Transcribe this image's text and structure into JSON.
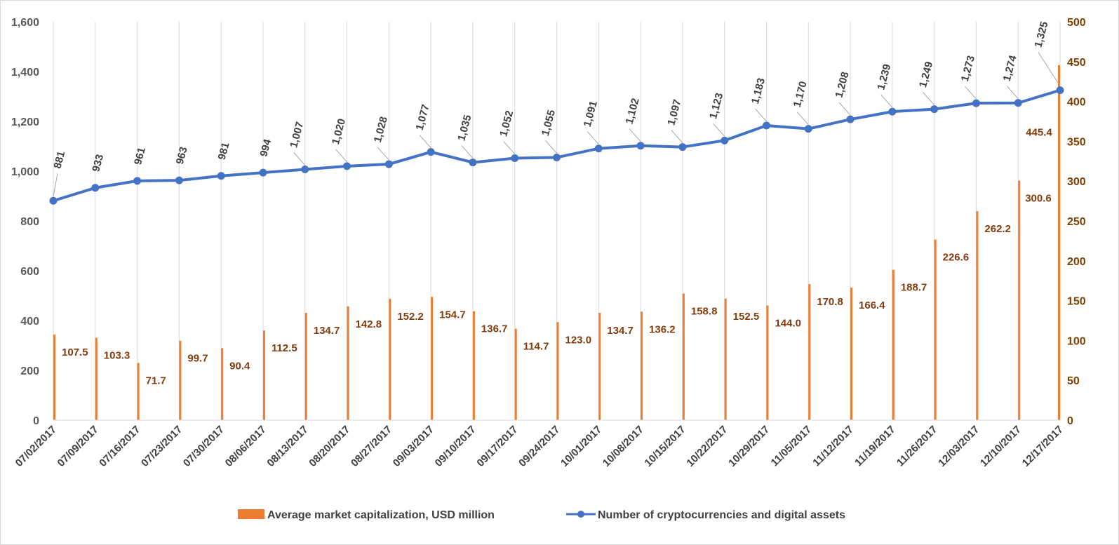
{
  "chart_data": {
    "type": "bar",
    "categories": [
      "07/02/2017",
      "07/09/2017",
      "07/16/2017",
      "07/23/2017",
      "07/30/2017",
      "08/06/2017",
      "08/13/2017",
      "08/20/2017",
      "08/27/2017",
      "09/03/2017",
      "09/10/2017",
      "09/17/2017",
      "09/24/2017",
      "10/01/2017",
      "10/08/2017",
      "10/15/2017",
      "10/22/2017",
      "10/29/2017",
      "11/05/2017",
      "11/12/2017",
      "11/19/2017",
      "11/26/2017",
      "12/03/2017",
      "12/10/2017",
      "12/17/2017"
    ],
    "series": [
      {
        "name": "Average market capitalization, USD million",
        "type": "bar",
        "axis": "right",
        "color": "#ed7d31",
        "values": [
          107.5,
          103.3,
          71.7,
          99.7,
          90.4,
          112.5,
          134.7,
          142.8,
          152.2,
          154.7,
          136.7,
          114.7,
          123.0,
          134.7,
          136.2,
          158.8,
          152.5,
          144.0,
          170.8,
          166.4,
          188.7,
          226.6,
          262.2,
          300.6,
          445.4
        ],
        "labels": [
          "107.5",
          "103.3",
          "71.7",
          "99.7",
          "90.4",
          "112.5",
          "134.7",
          "142.8",
          "152.2",
          "154.7",
          "136.7",
          "114.7",
          "123.0",
          "134.7",
          "136.2",
          "158.8",
          "152.5",
          "144.0",
          "170.8",
          "166.4",
          "188.7",
          "226.6",
          "262.2",
          "300.6",
          "445.4"
        ]
      },
      {
        "name": "Number of cryptocurrencies and digital assets",
        "type": "line",
        "axis": "left",
        "color": "#4472c4",
        "values": [
          881,
          933,
          961,
          963,
          981,
          994,
          1007,
          1020,
          1028,
          1077,
          1035,
          1052,
          1055,
          1091,
          1102,
          1097,
          1123,
          1183,
          1170,
          1208,
          1239,
          1249,
          1273,
          1274,
          1325
        ],
        "labels": [
          "881",
          "933",
          "961",
          "963",
          "981",
          "994",
          "1,007",
          "1,020",
          "1,028",
          "1,077",
          "1,035",
          "1,052",
          "1,055",
          "1,091",
          "1,102",
          "1,097",
          "1,123",
          "1,183",
          "1,170",
          "1,208",
          "1,239",
          "1,249",
          "1,273",
          "1,274",
          "1,325"
        ]
      }
    ],
    "y_left": {
      "min": 0,
      "max": 1600,
      "ticks": [
        "0",
        "200",
        "400",
        "600",
        "800",
        "1,000",
        "1,200",
        "1,400",
        "1,600"
      ]
    },
    "y_right": {
      "min": 0,
      "max": 500,
      "ticks": [
        "0",
        "50",
        "100",
        "150",
        "200",
        "250",
        "300",
        "350",
        "400",
        "450",
        "500"
      ]
    },
    "grid": "vertical",
    "legend_position": "bottom"
  }
}
